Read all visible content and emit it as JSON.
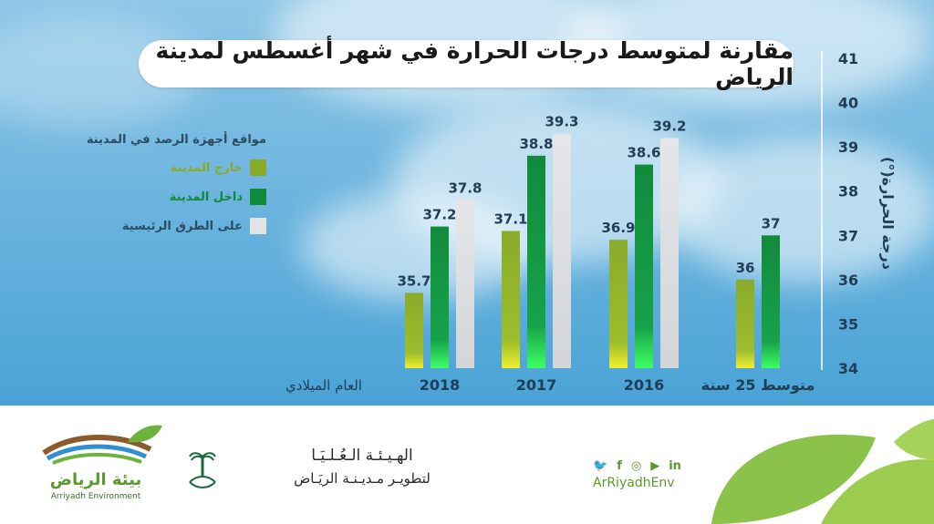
{
  "title": "مقارنة لمتوسط درجات الحرارة في شهر أغسطس لمدينة الرياض",
  "legend": {
    "title": "مواقع أجهزة الرصد في المدينة",
    "items": [
      {
        "label": "خارج المدينة",
        "color": "#8aab2a"
      },
      {
        "label": "داخل المدينة",
        "color": "#128a3c"
      },
      {
        "label": "على الطرق الرئيسية",
        "color": "#e2e4e6"
      }
    ]
  },
  "chart_data": {
    "type": "bar",
    "title": "مقارنة لمتوسط درجات الحرارة في شهر أغسطس لمدينة الرياض",
    "xlabel": "العام الميلادي",
    "ylabel": "درجة الحرارة(°)",
    "ylim": [
      34,
      41
    ],
    "yticks": [
      34,
      35,
      36,
      37,
      38,
      39,
      40,
      41
    ],
    "categories": [
      "متوسط 25 سنة",
      "2016",
      "2017",
      "2018"
    ],
    "series": [
      {
        "name": "خارج المدينة",
        "values": [
          36,
          36.9,
          37.1,
          35.7
        ]
      },
      {
        "name": "داخل المدينة",
        "values": [
          37,
          38.6,
          38.8,
          37.2
        ]
      },
      {
        "name": "على الطرق الرئيسية",
        "values": [
          null,
          39.2,
          39.3,
          37.8
        ]
      }
    ],
    "value_labels": [
      [
        "36",
        "36.9",
        "37.1",
        "35.7"
      ],
      [
        "37",
        "38.6",
        "38.8",
        "37.2"
      ],
      [
        null,
        "39.2",
        "39.3",
        "37.8"
      ]
    ]
  },
  "footer": {
    "social_icons": [
      "twitter-icon",
      "facebook-icon",
      "instagram-icon",
      "youtube-icon",
      "linkedin-icon"
    ],
    "social_glyphs": [
      "🐦",
      "f",
      "◎",
      "▶",
      "in"
    ],
    "handle": "ArRiyadhEnv",
    "authority_line1": "الهـيـئـة الـعُـلـيَـا",
    "authority_line2": "لتطويـر مـديـنـة الريَـاض",
    "env_arabic": "بيئة الرياض",
    "env_english": "Arriyadh Environment"
  }
}
